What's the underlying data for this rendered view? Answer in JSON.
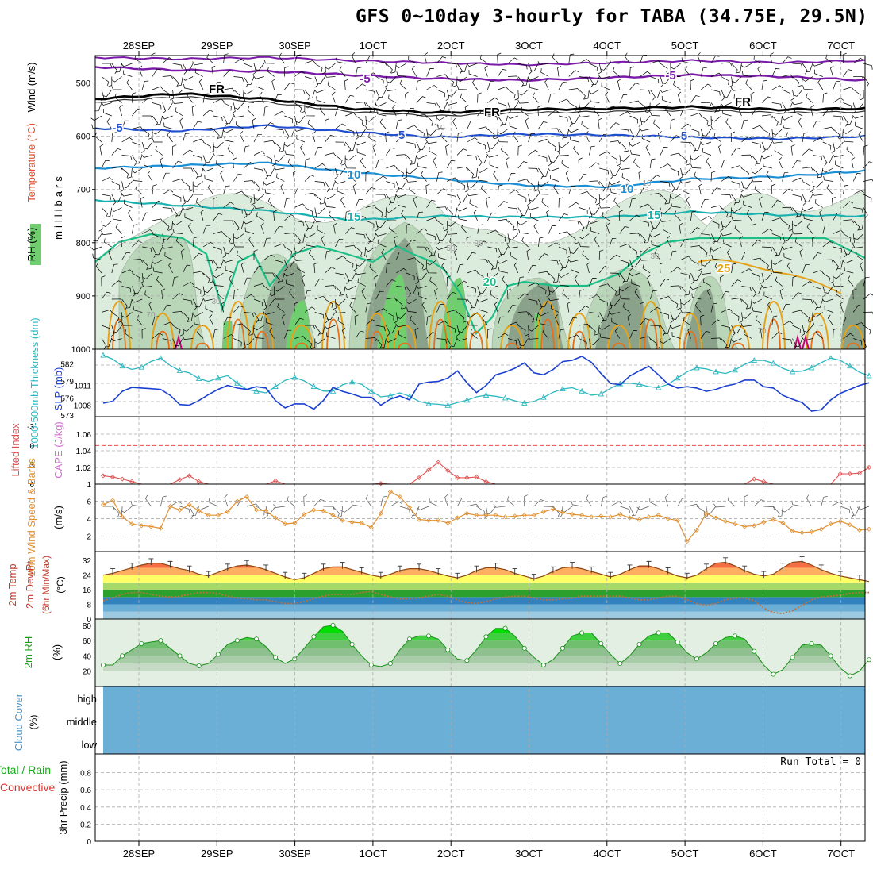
{
  "title": "GFS 0~10day 3-hourly for TABA (34.75E, 29.5N)",
  "colors": {
    "wind_barb": "#000000",
    "t_purple": "#7a1aa8",
    "t_freeze": "#000000",
    "t_blue5": "#1f4fd0",
    "t_10": "#1b8fd6",
    "t_15": "#19b0b0",
    "t_20": "#1dbf88",
    "t_25": "#e6a21a",
    "t_30": "#e8701a",
    "t_hot": "#cc0077",
    "rh_light": "#dcecdc",
    "rh_mid": "#b9d6b9",
    "rh_dark": "#8aa18a",
    "rh_green": "#6fcf6f",
    "thickness": "#2ab7c0",
    "slp": "#1a3fd0",
    "lifted": "#e05050",
    "cape": "#d070d0",
    "wind10": "#e09030",
    "cloud": "#6baed6",
    "grid": "#aaaaaa"
  },
  "chart_data": [
    {
      "panel": "upper-air",
      "type": "contour",
      "ylabel_left": [
        "Wind (m/s)",
        "Temperature (°C)",
        "RH (%)"
      ],
      "ylabel_right": "millibars",
      "y_ticks": [
        "500",
        "600",
        "700",
        "800",
        "900",
        "1000"
      ],
      "ylim": [
        1000,
        450
      ],
      "x_ticks_top": [
        "28SEP",
        "29SEP",
        "30SEP",
        "1OCT",
        "2OCT",
        "3OCT",
        "4OCT",
        "5OCT",
        "6OCT",
        "7OCT"
      ],
      "contour_labels": [
        {
          "text": "-5",
          "level": -5
        },
        {
          "text": "-5",
          "level": -5
        },
        {
          "text": "FR",
          "level": 0
        },
        {
          "text": "FR",
          "level": 0
        },
        {
          "text": "FR",
          "level": 0
        },
        {
          "text": "-5",
          "level": -5
        },
        {
          "text": "5",
          "level": 5
        },
        {
          "text": "5",
          "level": 5
        },
        {
          "text": "10",
          "level": 10
        },
        {
          "text": "10",
          "level": 10
        },
        {
          "text": "15",
          "level": 15
        },
        {
          "text": "15",
          "level": 15
        },
        {
          "text": "20",
          "level": 20
        },
        {
          "text": "25",
          "level": 25
        }
      ],
      "rh_labels": [
        "10",
        "10",
        "30",
        "50",
        "30",
        "30",
        "70",
        "70"
      ],
      "isotherm_mb": {
        "minus5_top": [
          470,
          476,
          478,
          485,
          492,
          495,
          490,
          485,
          488,
          495
        ],
        "freezing": [
          530,
          520,
          530,
          548,
          556,
          550,
          548,
          545,
          550,
          548
        ],
        "plus5": [
          585,
          590,
          580,
          592,
          602,
          596,
          598,
          602,
          605,
          600
        ],
        "plus10": [
          660,
          655,
          650,
          668,
          680,
          692,
          695,
          680,
          676,
          665
        ],
        "plus15": [
          720,
          730,
          740,
          758,
          750,
          752,
          752,
          742,
          748,
          750
        ],
        "plus20": [
          810,
          800,
          810,
          830,
          880,
          900,
          870,
          848,
          845,
          830
        ]
      }
    },
    {
      "panel": "thickness-slp",
      "type": "line",
      "ylabel_left": "1000-500mb Thickness (dm)",
      "ylabel_right": "SLP (mb)",
      "y_ticks_left": [
        "582",
        "579",
        "576",
        "573"
      ],
      "y_ticks_right": [
        "1011",
        "1008"
      ],
      "series": [
        {
          "name": "Thickness",
          "values": [
            583.5,
            582.8,
            581.6,
            581.0,
            581.4,
            582.4,
            583.0,
            581.7,
            580.8,
            580.4,
            579.4,
            578.9,
            579.5,
            579.9,
            578.6,
            577.5,
            577.2,
            576.9,
            578.0,
            579.1,
            579.6,
            579.0,
            578.0,
            577.2,
            577.2,
            578.3,
            578.8,
            578.4,
            577.2,
            576.2,
            576.4,
            576.9,
            576.3,
            575.4,
            575.0,
            574.9,
            574.7,
            575.2,
            575.6,
            576.2,
            576.5,
            576.3,
            576.0,
            575.5,
            575.1,
            575.4,
            576.1,
            577.0,
            577.6,
            577.8,
            577.2,
            576.5,
            576.7,
            577.7,
            578.5,
            578.6,
            578.4,
            578.0,
            577.8,
            578.4,
            579.5,
            580.6,
            581.3,
            581.1,
            580.6,
            580.3,
            580.9,
            581.9,
            582.6,
            582.6,
            582.1,
            581.2,
            580.6,
            580.7,
            581.3,
            582.2,
            583.0,
            582.6,
            581.6,
            580.5,
            579.9
          ]
        },
        {
          "name": "SLP",
          "values": [
            1008.3,
            1008.6,
            1010.1,
            1010.7,
            1010.6,
            1010.5,
            1010.4,
            1009.5,
            1008.1,
            1008.0,
            1008.7,
            1009.6,
            1010.4,
            1011.0,
            1010.6,
            1010.4,
            1010.8,
            1010.6,
            1008.7,
            1007.6,
            1008.2,
            1008.2,
            1007.4,
            1008.7,
            1010.7,
            1010.1,
            1009.7,
            1009.2,
            1009.2,
            1008.0,
            1008.9,
            1009.4,
            1008.8,
            1011.2,
            1011.5,
            1011.6,
            1012.1,
            1013.2,
            1011.4,
            1009.9,
            1011.0,
            1012.6,
            1013.0,
            1013.6,
            1014.4,
            1012.9,
            1012.6,
            1013.4,
            1014.6,
            1014.8,
            1015.4,
            1014.5,
            1012.8,
            1011.3,
            1011.1,
            1012.4,
            1013.2,
            1013.9,
            1012.6,
            1011.2,
            1010.6,
            1010.8,
            1010.6,
            1010.1,
            1010.4,
            1010.9,
            1011.2,
            1011.8,
            1011.8,
            1010.8,
            1010.6,
            1009.5,
            1008.9,
            1008.4,
            1007.1,
            1007.3,
            1008.8,
            1009.8,
            1010.4,
            1011.0,
            1011.4
          ]
        }
      ]
    },
    {
      "panel": "lifted-cape",
      "type": "line",
      "ylabel_left": "Lifted Index",
      "ylabel_right": "CAPE (J/kg)",
      "y_ticks_left": [
        "-3",
        "0",
        "3",
        "6"
      ],
      "y_ticks_right": [
        "1.06",
        "1.04",
        "1.02",
        "1"
      ],
      "series": [
        {
          "name": "Lifted Index",
          "values": [
            4.7,
            4.9,
            5.2,
            5.6,
            6,
            6,
            6,
            6,
            5.3,
            4.7,
            5.6,
            6,
            6,
            6,
            6,
            6,
            6,
            6,
            5.5,
            6,
            6,
            6,
            6,
            6,
            6,
            6,
            6,
            6,
            6,
            5.9,
            6,
            6,
            6,
            5.0,
            3.8,
            2.6,
            3.9,
            5.0,
            5.0,
            4.9,
            5.6,
            6,
            6,
            6,
            6,
            6,
            6,
            6,
            6,
            6,
            6,
            6,
            6,
            6,
            6,
            6,
            6,
            6,
            6,
            6,
            6,
            6,
            6,
            6,
            6,
            6,
            6,
            6,
            5.2,
            5.6,
            6,
            6,
            6,
            6,
            6,
            6,
            6,
            4.4,
            4.4,
            4.3,
            3.4
          ]
        }
      ]
    },
    {
      "panel": "wind10m",
      "type": "line",
      "ylabel_left": "10m Wind Speed & Barbs",
      "ylabel_right": "(m/s)",
      "y_ticks": [
        "6",
        "4",
        "2"
      ],
      "series": [
        {
          "name": "10m Wind Speed",
          "values": [
            5.6,
            6.1,
            4.2,
            3.4,
            3.2,
            3.1,
            2.9,
            5.4,
            5.0,
            5.6,
            4.9,
            4.4,
            4.4,
            4.8,
            6.0,
            6.5,
            5.0,
            4.9,
            4.1,
            3.4,
            3.5,
            4.5,
            5.0,
            4.9,
            4.4,
            3.8,
            3.6,
            3.5,
            3.0,
            4.6,
            7.1,
            6.5,
            5.3,
            3.9,
            3.8,
            3.8,
            3.5,
            4.1,
            4.6,
            4.4,
            4.4,
            4.4,
            4.2,
            4.3,
            4.4,
            4.4,
            4.8,
            5.1,
            4.7,
            4.5,
            4.4,
            4.2,
            4.3,
            4.2,
            4.5,
            4.1,
            3.9,
            4.2,
            4.4,
            4.0,
            3.8,
            1.4,
            2.7,
            4.6,
            4.1,
            3.7,
            3.4,
            3.1,
            3.2,
            3.6,
            3.9,
            3.5,
            2.6,
            2.4,
            2.5,
            2.8,
            3.4,
            3.7,
            3.3,
            2.7,
            2.8
          ]
        }
      ]
    },
    {
      "panel": "temperature",
      "type": "area",
      "ylabel_left": [
        "2m Temp",
        "2m DewPt",
        "(6hr Min/Max)",
        "(°C)"
      ],
      "y_ticks": [
        "32",
        "24",
        "16",
        "8",
        "0"
      ],
      "series": [
        {
          "name": "2m Temp",
          "values": [
            24.0,
            25.0,
            26.5,
            28.0,
            29.5,
            30.5,
            30.5,
            29.0,
            27.5,
            26.5,
            24.5,
            23.5,
            25.5,
            27.5,
            29.0,
            29.5,
            28.5,
            27.0,
            25.0,
            23.0,
            21.5,
            22.5,
            25.0,
            27.5,
            28.5,
            28.5,
            27.0,
            25.5,
            24.0,
            23.0,
            24.5,
            26.5,
            27.5,
            27.5,
            26.5,
            25.0,
            23.5,
            22.5,
            24.0,
            26.5,
            28.0,
            28.0,
            27.0,
            25.0,
            23.5,
            22.0,
            23.5,
            26.0,
            28.0,
            28.5,
            27.5,
            26.0,
            24.5,
            23.0,
            24.5,
            27.0,
            29.0,
            29.0,
            27.5,
            25.5,
            23.5,
            22.5,
            24.0,
            27.5,
            30.5,
            31.0,
            29.0,
            26.5,
            24.5,
            23.5,
            24.5,
            28.0,
            31.0,
            31.5,
            29.5,
            27.0,
            25.0,
            23.5,
            22.5,
            21.5,
            20.5
          ]
        },
        {
          "name": "2m DewPt",
          "values": [
            10.0,
            11.5,
            13.5,
            14.5,
            14.5,
            13.5,
            12.5,
            12.0,
            12.5,
            13.5,
            14.5,
            14.5,
            14.0,
            12.5,
            11.5,
            11.0,
            10.5,
            10.5,
            9.5,
            8.5,
            8.5,
            9.5,
            11.0,
            12.5,
            13.5,
            13.5,
            13.5,
            14.5,
            15.0,
            13.5,
            12.0,
            11.0,
            11.0,
            11.5,
            12.5,
            13.5,
            12.5,
            10.5,
            9.0,
            8.5,
            9.5,
            11.0,
            12.0,
            12.5,
            12.5,
            11.5,
            10.5,
            10.5,
            11.0,
            11.5,
            12.5,
            12.5,
            12.5,
            12.5,
            12.5,
            11.5,
            10.5,
            10.5,
            11.5,
            12.5,
            12.5,
            10.5,
            8.5,
            7.5,
            8.5,
            10.5,
            11.5,
            11.5,
            10.0,
            6.0,
            3.5,
            3.0,
            4.5,
            7.5,
            10.5,
            12.0,
            12.5,
            13.0,
            14.0,
            14.5,
            14.5
          ]
        }
      ]
    },
    {
      "panel": "rh2m",
      "type": "area",
      "ylabel_left": [
        "2m RH",
        "(%)"
      ],
      "y_ticks": [
        "80",
        "60",
        "40",
        "20"
      ],
      "series": [
        {
          "name": "2m RH",
          "values": [
            28,
            28,
            40,
            48,
            56,
            58,
            60,
            50,
            40,
            30,
            27,
            30,
            42,
            55,
            60,
            64,
            62,
            52,
            38,
            30,
            36,
            50,
            65,
            78,
            80,
            72,
            55,
            40,
            28,
            26,
            30,
            48,
            62,
            66,
            66,
            62,
            48,
            36,
            34,
            48,
            65,
            76,
            76,
            66,
            50,
            38,
            28,
            35,
            50,
            66,
            70,
            70,
            56,
            42,
            30,
            40,
            55,
            66,
            70,
            70,
            58,
            44,
            36,
            44,
            56,
            64,
            66,
            62,
            46,
            28,
            16,
            22,
            38,
            54,
            56,
            54,
            40,
            24,
            14,
            20,
            35
          ]
        }
      ]
    },
    {
      "panel": "cloud",
      "type": "heatmap",
      "ylabel_left": [
        "Cloud Cover",
        "(%)"
      ],
      "y_ticks": [
        "high",
        "middle",
        "low"
      ],
      "fill": "uniform"
    },
    {
      "panel": "precip",
      "type": "bar",
      "ylabel_left": [
        "Total / Rain",
        "Convective",
        "3hr Precip (mm)"
      ],
      "y_ticks": [
        "0.8",
        "0.6",
        "0.4",
        "0.2",
        "0"
      ],
      "ylim": [
        0,
        1
      ],
      "annotation": "Run Total = 0",
      "x_ticks_bottom": [
        "28SEP",
        "29SEP",
        "30SEP",
        "1OCT",
        "2OCT",
        "3OCT",
        "4OCT",
        "5OCT",
        "6OCT",
        "7OCT"
      ],
      "values": []
    }
  ]
}
